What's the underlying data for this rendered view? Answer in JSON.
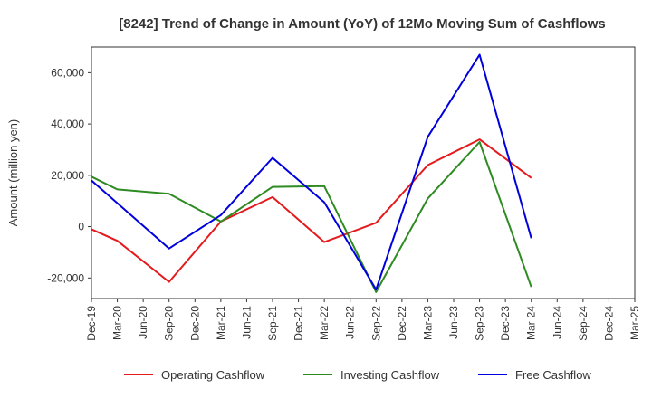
{
  "chart_data": {
    "type": "line",
    "title": "[8242]  Trend of Change in Amount (YoY) of 12Mo Moving Sum of Cashflows",
    "xlabel": "",
    "ylabel": "Amount (million yen)",
    "categories": [
      "Dec-19",
      "Mar-20",
      "Jun-20",
      "Sep-20",
      "Dec-20",
      "Mar-21",
      "Jun-21",
      "Sep-21",
      "Dec-21",
      "Mar-22",
      "Jun-22",
      "Sep-22",
      "Dec-22",
      "Mar-23",
      "Jun-23",
      "Sep-23",
      "Dec-23",
      "Mar-24",
      "Jun-24",
      "Sep-24",
      "Dec-24",
      "Mar-25"
    ],
    "ylim": [
      -28000,
      70000
    ],
    "yticks": [
      -20000,
      0,
      20000,
      40000,
      60000
    ],
    "ytick_labels": [
      "-20,000",
      "0",
      "20,000",
      "40,000",
      "60,000"
    ],
    "grid": true,
    "legend_position": "bottom",
    "series": [
      {
        "name": "Operating Cashflow",
        "color": "#e41a1c",
        "values": [
          -1000,
          -5500,
          null,
          -21500,
          null,
          2000,
          null,
          11500,
          null,
          -6000,
          null,
          1500,
          null,
          24000,
          null,
          34000,
          null,
          19000,
          null,
          null,
          null,
          null
        ]
      },
      {
        "name": "Investing Cashflow",
        "color": "#2e8b22",
        "values": [
          19500,
          14500,
          null,
          12800,
          null,
          2000,
          null,
          15500,
          null,
          15800,
          null,
          -25500,
          null,
          11000,
          null,
          33000,
          null,
          -23500,
          null,
          null,
          null,
          null
        ]
      },
      {
        "name": "Free Cashflow",
        "color": "#0000dd",
        "values": [
          18000,
          null,
          null,
          -8500,
          null,
          4500,
          null,
          26800,
          null,
          9500,
          null,
          -24500,
          null,
          35000,
          null,
          67000,
          null,
          -4500,
          null,
          null,
          null,
          null
        ]
      }
    ]
  }
}
